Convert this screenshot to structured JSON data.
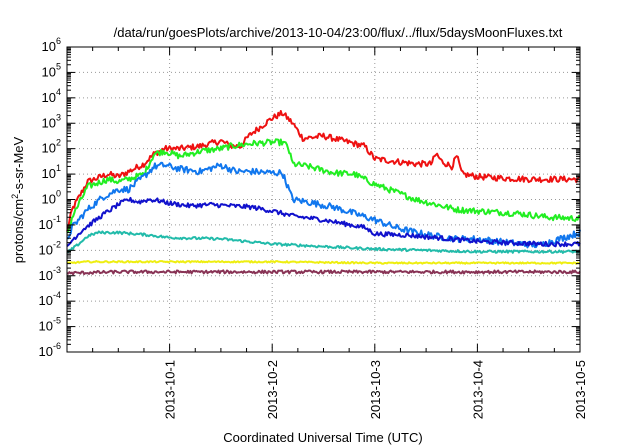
{
  "chart_data": {
    "type": "line",
    "title": "/data/run/goesPlots/archive/2013-10-04/23:00/flux/../flux/5daysMoonFluxes.txt",
    "xlabel": "Coordinated Universal Time (UTC)",
    "ylabel": {
      "prefix": "protons/cm",
      "sup": "2",
      "suffix": "-s-sr-MeV"
    },
    "yscale": "log",
    "ylim": [
      1e-06,
      1000000.0
    ],
    "xlim": [
      0,
      5
    ],
    "x_ticks": [
      {
        "x": 1,
        "label": "2013-10-1"
      },
      {
        "x": 2,
        "label": "2013-10-2"
      },
      {
        "x": 3,
        "label": "2013-10-3"
      },
      {
        "x": 4,
        "label": "2013-10-4"
      },
      {
        "x": 5,
        "label": "2013-10-5"
      }
    ],
    "y_ticks": [
      {
        "exp": -6,
        "label": "10",
        "sup": "-6"
      },
      {
        "exp": -5,
        "label": "10",
        "sup": "-5"
      },
      {
        "exp": -4,
        "label": "10",
        "sup": "-4"
      },
      {
        "exp": -3,
        "label": "10",
        "sup": "-3"
      },
      {
        "exp": -2,
        "label": "10",
        "sup": "-2"
      },
      {
        "exp": -1,
        "label": "10",
        "sup": "-1"
      },
      {
        "exp": 0,
        "label": "10",
        "sup": "0"
      },
      {
        "exp": 1,
        "label": "10",
        "sup": "1"
      },
      {
        "exp": 2,
        "label": "10",
        "sup": "2"
      },
      {
        "exp": 3,
        "label": "10",
        "sup": "3"
      },
      {
        "exp": 4,
        "label": "10",
        "sup": "4"
      },
      {
        "exp": 5,
        "label": "10",
        "sup": "5"
      },
      {
        "exp": 6,
        "label": "10",
        "sup": "6"
      }
    ],
    "grid": true,
    "series": [
      {
        "color": "#ee1111",
        "noise": 0.12,
        "points": [
          [
            0,
            -1.3
          ],
          [
            0.05,
            -0.4
          ],
          [
            0.2,
            0.7
          ],
          [
            0.4,
            1.0
          ],
          [
            0.5,
            0.9
          ],
          [
            0.6,
            1.1
          ],
          [
            0.75,
            1.4
          ],
          [
            0.85,
            1.8
          ],
          [
            0.95,
            2.0
          ],
          [
            1.1,
            2.0
          ],
          [
            1.3,
            2.1
          ],
          [
            1.5,
            2.3
          ],
          [
            1.6,
            2.1
          ],
          [
            1.7,
            2.1
          ],
          [
            1.75,
            2.4
          ],
          [
            1.8,
            2.6
          ],
          [
            2.0,
            3.2
          ],
          [
            2.1,
            3.4
          ],
          [
            2.2,
            3.0
          ],
          [
            2.3,
            2.4
          ],
          [
            2.5,
            2.5
          ],
          [
            2.7,
            2.3
          ],
          [
            2.9,
            2.1
          ],
          [
            3.0,
            1.6
          ],
          [
            3.2,
            1.5
          ],
          [
            3.4,
            1.4
          ],
          [
            3.55,
            1.4
          ],
          [
            3.6,
            1.8
          ],
          [
            3.65,
            1.5
          ],
          [
            3.75,
            1.3
          ],
          [
            3.8,
            1.7
          ],
          [
            3.85,
            1.0
          ],
          [
            4.0,
            0.9
          ],
          [
            4.2,
            0.85
          ],
          [
            4.5,
            0.8
          ],
          [
            5.0,
            0.8
          ]
        ]
      },
      {
        "color": "#22ee22",
        "noise": 0.12,
        "points": [
          [
            0,
            -1.4
          ],
          [
            0.05,
            -0.7
          ],
          [
            0.2,
            0.5
          ],
          [
            0.4,
            0.8
          ],
          [
            0.5,
            0.7
          ],
          [
            0.6,
            0.8
          ],
          [
            0.75,
            1.0
          ],
          [
            0.85,
            1.8
          ],
          [
            0.95,
            1.9
          ],
          [
            1.1,
            1.7
          ],
          [
            1.3,
            1.9
          ],
          [
            1.5,
            2.0
          ],
          [
            1.6,
            2.1
          ],
          [
            1.8,
            2.2
          ],
          [
            2.0,
            2.25
          ],
          [
            2.1,
            2.25
          ],
          [
            2.15,
            2.1
          ],
          [
            2.2,
            1.4
          ],
          [
            2.35,
            1.3
          ],
          [
            2.6,
            1.05
          ],
          [
            2.8,
            1.0
          ],
          [
            3.0,
            0.6
          ],
          [
            3.2,
            0.3
          ],
          [
            3.4,
            0.0
          ],
          [
            3.6,
            -0.2
          ],
          [
            3.8,
            -0.4
          ],
          [
            4.0,
            -0.45
          ],
          [
            4.4,
            -0.55
          ],
          [
            4.7,
            -0.7
          ],
          [
            5.0,
            -0.75
          ]
        ]
      },
      {
        "color": "#1177ee",
        "noise": 0.13,
        "points": [
          [
            0,
            -1.6
          ],
          [
            0.05,
            -1.1
          ],
          [
            0.2,
            -0.4
          ],
          [
            0.35,
            0.1
          ],
          [
            0.5,
            0.4
          ],
          [
            0.6,
            0.4
          ],
          [
            0.75,
            0.9
          ],
          [
            0.85,
            1.3
          ],
          [
            0.95,
            1.35
          ],
          [
            1.1,
            1.2
          ],
          [
            1.3,
            1.1
          ],
          [
            1.5,
            1.35
          ],
          [
            1.65,
            1.1
          ],
          [
            1.8,
            1.1
          ],
          [
            2.0,
            1.05
          ],
          [
            2.1,
            1.05
          ],
          [
            2.2,
            0.0
          ],
          [
            2.35,
            -0.1
          ],
          [
            2.6,
            -0.3
          ],
          [
            2.8,
            -0.55
          ],
          [
            3.0,
            -0.8
          ],
          [
            3.2,
            -1.1
          ],
          [
            3.4,
            -1.3
          ],
          [
            3.6,
            -1.45
          ],
          [
            3.8,
            -1.55
          ],
          [
            4.0,
            -1.55
          ],
          [
            4.3,
            -1.7
          ],
          [
            4.6,
            -1.8
          ],
          [
            5.0,
            -1.3
          ]
        ]
      },
      {
        "color": "#1111cc",
        "noise": 0.09,
        "points": [
          [
            0,
            -1.9
          ],
          [
            0.05,
            -1.6
          ],
          [
            0.15,
            -1.2
          ],
          [
            0.25,
            -0.9
          ],
          [
            0.35,
            -0.6
          ],
          [
            0.5,
            -0.2
          ],
          [
            0.6,
            0.0
          ],
          [
            0.7,
            -0.1
          ],
          [
            0.8,
            0.0
          ],
          [
            0.9,
            -0.05
          ],
          [
            1.0,
            -0.15
          ],
          [
            1.2,
            -0.25
          ],
          [
            1.4,
            -0.2
          ],
          [
            1.6,
            -0.25
          ],
          [
            1.8,
            -0.3
          ],
          [
            2.0,
            -0.45
          ],
          [
            2.2,
            -0.65
          ],
          [
            2.5,
            -0.8
          ],
          [
            2.7,
            -0.95
          ],
          [
            2.9,
            -1.1
          ],
          [
            3.0,
            -1.35
          ],
          [
            3.3,
            -1.4
          ],
          [
            3.6,
            -1.5
          ],
          [
            4.0,
            -1.65
          ],
          [
            4.3,
            -1.7
          ],
          [
            4.6,
            -1.75
          ],
          [
            5.0,
            -1.75
          ]
        ]
      },
      {
        "color": "#22bbaa",
        "noise": 0.05,
        "points": [
          [
            0,
            -2.1
          ],
          [
            0.1,
            -1.8
          ],
          [
            0.2,
            -1.45
          ],
          [
            0.3,
            -1.3
          ],
          [
            0.5,
            -1.3
          ],
          [
            0.8,
            -1.4
          ],
          [
            1.0,
            -1.5
          ],
          [
            1.5,
            -1.55
          ],
          [
            2.0,
            -1.75
          ],
          [
            2.5,
            -1.85
          ],
          [
            3.0,
            -1.95
          ],
          [
            3.5,
            -2.0
          ],
          [
            4.0,
            -2.05
          ],
          [
            4.5,
            -2.05
          ],
          [
            5.0,
            -2.05
          ]
        ]
      },
      {
        "color": "#eeee11",
        "noise": 0.03,
        "points": [
          [
            0,
            -2.5
          ],
          [
            0.2,
            -2.45
          ],
          [
            1.0,
            -2.45
          ],
          [
            2.0,
            -2.45
          ],
          [
            3.0,
            -2.5
          ],
          [
            4.0,
            -2.5
          ],
          [
            5.0,
            -2.5
          ]
        ]
      },
      {
        "color": "#883355",
        "noise": 0.06,
        "points": [
          [
            0,
            -2.9
          ],
          [
            0.5,
            -2.85
          ],
          [
            1.0,
            -2.85
          ],
          [
            2.0,
            -2.85
          ],
          [
            3.0,
            -2.85
          ],
          [
            4.0,
            -2.85
          ],
          [
            5.0,
            -2.85
          ]
        ]
      }
    ]
  }
}
